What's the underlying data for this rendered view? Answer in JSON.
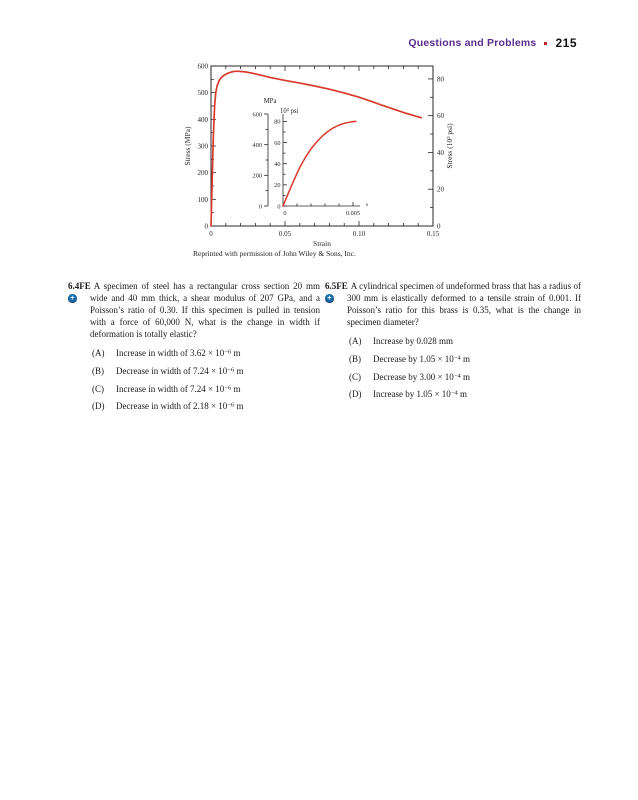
{
  "colors": {
    "header_purple": "#5b2c8f",
    "dot_red": "#c0272d",
    "curve_red": "#d93a2b",
    "icon_blue": "#1c6fad",
    "ink": "#2b2728"
  },
  "header": {
    "section_title": "Questions and Problems",
    "page_number": "215"
  },
  "icons": {
    "plus_glyph": "+"
  },
  "chart_data": {
    "type": "line",
    "xlabel": "Strain",
    "ylabel_left": "Stress (MPa)",
    "ylabel_right": "Stress (10³ psi)",
    "xlim": [
      0,
      0.15
    ],
    "xticks": [
      0,
      0.05,
      0.1,
      0.15
    ],
    "xtick_labels": [
      "0",
      "0.05",
      "0.10",
      "0.15"
    ],
    "x_minor_step": 0.01,
    "ylim_left": [
      0,
      600
    ],
    "yticks_left": [
      0,
      100,
      200,
      300,
      400,
      500,
      600
    ],
    "y_minor_step_left": 50,
    "yticks_right_psi": [
      0,
      20,
      40,
      60,
      80
    ],
    "y_minor_step_right_psi": 10,
    "mpa_per_ksi": 6.895,
    "line_color": "#d93a2b",
    "grid": false,
    "series": [
      {
        "name": "engineering stress-strain curve (steel)",
        "x": [
          0,
          0.0008,
          0.0016,
          0.0024,
          0.0032,
          0.0042,
          0.0055,
          0.007,
          0.009,
          0.011,
          0.0135,
          0.016,
          0.019,
          0.023,
          0.028,
          0.034,
          0.04,
          0.05,
          0.06,
          0.07,
          0.08,
          0.09,
          0.1,
          0.108,
          0.116,
          0.124,
          0.131,
          0.137,
          0.142
        ],
        "y_mpa": [
          0,
          170,
          340,
          445,
          500,
          527,
          545,
          557,
          566,
          572,
          577,
          580,
          580,
          578,
          573,
          565,
          557,
          546,
          536,
          525,
          513,
          499,
          483,
          468,
          452,
          437,
          424,
          414,
          406
        ]
      }
    ],
    "inset": {
      "mpa_axis_label": "MPa",
      "mpa_axis_ticks": [
        0,
        200,
        400,
        600
      ],
      "mpa_minor_step": 100,
      "psi_axis_label": "10³ psi",
      "psi_axis_ticks": [
        0,
        20,
        40,
        60,
        80
      ],
      "psi_minor_step": 10,
      "xlim": [
        0,
        0.0055
      ],
      "xticks": [
        0,
        0.005
      ],
      "xtick_labels": [
        "0",
        "0.005"
      ],
      "x_minor_step": 0.001,
      "series": {
        "name": "initial elastic region (magnified)",
        "x": [
          0,
          0.0003,
          0.0006,
          0.0009,
          0.0012,
          0.0016,
          0.002,
          0.0024,
          0.0028,
          0.0032,
          0.0036,
          0.004,
          0.0044,
          0.0048,
          0.0052
        ],
        "y_psi": [
          0,
          9.5,
          19,
          28,
          36.5,
          46,
          54,
          60.5,
          66,
          70.5,
          74,
          76.5,
          78.3,
          79.4,
          80
        ]
      }
    },
    "caption": "Reprinted with permission of John Wiley & Sons, Inc."
  },
  "questions": [
    {
      "number": "6.4FE",
      "text": "A specimen of steel has a rectangular cross section 20 mm wide and 40 mm thick, a shear modulus of 207 GPa, and a Poisson’s ratio of 0.30. If this specimen is pulled in tension with a force of 60,000 N, what is the change in width if deformation is totally elastic?",
      "options": [
        {
          "label": "(A)",
          "pre": "Increase in width of 3.62 × 10",
          "sup": "−6",
          "post": " m"
        },
        {
          "label": "(B)",
          "pre": "Decrease in width of 7.24 × 10",
          "sup": "−6",
          "post": " m"
        },
        {
          "label": "(C)",
          "pre": "Increase in width of 7.24 × 10",
          "sup": "−6",
          "post": " m"
        },
        {
          "label": "(D)",
          "pre": "Decrease in width of 2.18 × 10",
          "sup": "−6",
          "post": " m"
        }
      ]
    },
    {
      "number": "6.5FE",
      "text": "A cylindrical specimen of undeformed brass that has a radius of 300 mm is elastically deformed to a tensile strain of 0.001. If Poisson’s ratio for this brass is 0.35, what is the change in specimen diameter?",
      "options": [
        {
          "label": "(A)",
          "pre": "Increase by 0.028 mm",
          "sup": "",
          "post": ""
        },
        {
          "label": "(B)",
          "pre": "Decrease by 1.05 × 10",
          "sup": "−4",
          "post": " m"
        },
        {
          "label": "(C)",
          "pre": "Decrease by 3.00 × 10",
          "sup": "−4",
          "post": " m"
        },
        {
          "label": "(D)",
          "pre": "Increase by 1.05 × 10",
          "sup": "−4",
          "post": " m"
        }
      ]
    }
  ]
}
